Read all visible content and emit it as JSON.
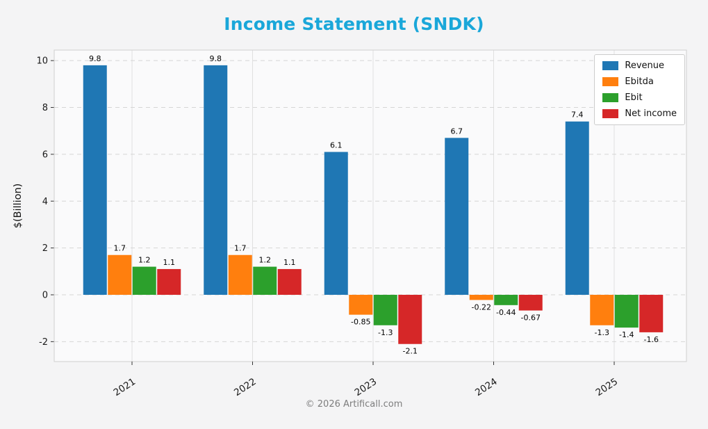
{
  "footer": {
    "text": "© 2026 Artificall.com"
  },
  "chart_data": {
    "type": "bar",
    "title": "Income Statement (SNDK)",
    "title_color": "#1aa7d9",
    "ylabel": "$(Billion)",
    "xlabel": "",
    "categories": [
      "2021",
      "2022",
      "2023",
      "2024",
      "2025"
    ],
    "series": [
      {
        "name": "Revenue",
        "color": "#1f77b4",
        "values": [
          9.8,
          9.8,
          6.1,
          6.7,
          7.4
        ],
        "labels": [
          "9.8",
          "9.8",
          "6.1",
          "6.7",
          "7.4"
        ]
      },
      {
        "name": "Ebitda",
        "color": "#ff7f0e",
        "values": [
          1.7,
          1.7,
          -0.85,
          -0.22,
          -1.3
        ],
        "labels": [
          "1.7",
          "1.7",
          "-0.85",
          "-0.22",
          "-1.3"
        ]
      },
      {
        "name": "Ebit",
        "color": "#2ca02c",
        "values": [
          1.2,
          1.2,
          -1.3,
          -0.44,
          -1.4
        ],
        "labels": [
          "1.2",
          "1.2",
          "-1.3",
          "-0.44",
          "-1.4"
        ]
      },
      {
        "name": "Net income",
        "color": "#d62728",
        "values": [
          1.1,
          1.1,
          -2.1,
          -0.67,
          -1.6
        ],
        "labels": [
          "1.1",
          "1.1",
          "-2.1",
          "-0.67",
          "-1.6"
        ]
      }
    ],
    "yticks": [
      -2,
      0,
      2,
      4,
      6,
      8,
      10
    ],
    "ylim": [
      -2.85,
      10.45
    ],
    "grid": true,
    "legend_position": "top-right"
  }
}
